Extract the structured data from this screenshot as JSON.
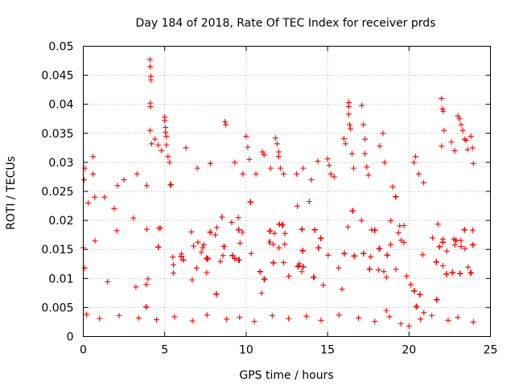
{
  "chart_data": {
    "type": "scatter",
    "title": "Day 184 of 2018, Rate Of TEC Index for receiver prds",
    "xlabel": "GPS time / hours",
    "ylabel": "ROTI / TECUs",
    "xlim": [
      0,
      25
    ],
    "ylim": [
      0,
      0.05
    ],
    "x_ticks": [
      0,
      5,
      10,
      15,
      20,
      25
    ],
    "x_tick_labels": [
      "0",
      "5",
      "10",
      "15",
      "20",
      "25"
    ],
    "y_ticks": [
      0,
      0.005,
      0.01,
      0.015,
      0.02,
      0.025,
      0.03,
      0.035,
      0.04,
      0.045,
      0.05
    ],
    "y_tick_labels": [
      "0",
      "0.005",
      "0.01",
      "0.015",
      "0.02",
      "0.025",
      "0.03",
      "0.035",
      "0.04",
      "0.045",
      "0.05"
    ],
    "grid": true,
    "marker": "plus",
    "color": "#ff0000",
    "series": [
      {
        "name": "ROTI",
        "x_range_hours": [
          0,
          24
        ],
        "typical_range": [
          0.003,
          0.025
        ],
        "points": [
          [
            0.05,
            0.027
          ],
          [
            0.1,
            0.029
          ],
          [
            0.3,
            0.023
          ],
          [
            0.6,
            0.031
          ],
          [
            0.6,
            0.028
          ],
          [
            0.7,
            0.024
          ],
          [
            1.3,
            0.024
          ],
          [
            2.1,
            0.026
          ],
          [
            2.5,
            0.027
          ],
          [
            3.3,
            0.028
          ],
          [
            3.9,
            0.026
          ],
          [
            4.1,
            0.0477
          ],
          [
            4.1,
            0.0465
          ],
          [
            4.15,
            0.0448
          ],
          [
            4.15,
            0.0442
          ],
          [
            4.12,
            0.0402
          ],
          [
            4.12,
            0.0396
          ],
          [
            4.1,
            0.0355
          ],
          [
            4.2,
            0.0332
          ],
          [
            4.4,
            0.034
          ],
          [
            4.6,
            0.033
          ],
          [
            4.8,
            0.032
          ],
          [
            5.0,
            0.0378
          ],
          [
            5.0,
            0.0372
          ],
          [
            5.05,
            0.036
          ],
          [
            5.05,
            0.0352
          ],
          [
            5.1,
            0.0345
          ],
          [
            5.1,
            0.033
          ],
          [
            5.2,
            0.031
          ],
          [
            5.3,
            0.03
          ],
          [
            6.3,
            0.0325
          ],
          [
            7.0,
            0.029
          ],
          [
            7.8,
            0.0298
          ],
          [
            8.7,
            0.037
          ],
          [
            8.75,
            0.0365
          ],
          [
            9.3,
            0.03
          ],
          [
            9.8,
            0.028
          ],
          [
            10.0,
            0.0345
          ],
          [
            10.1,
            0.0326
          ],
          [
            10.2,
            0.0305
          ],
          [
            10.6,
            0.028
          ],
          [
            11.0,
            0.0318
          ],
          [
            11.1,
            0.0313
          ],
          [
            11.5,
            0.029
          ],
          [
            11.8,
            0.0342
          ],
          [
            11.9,
            0.0332
          ],
          [
            12.0,
            0.0318
          ],
          [
            12.0,
            0.031
          ],
          [
            12.1,
            0.029
          ],
          [
            12.3,
            0.028
          ],
          [
            13.1,
            0.028
          ],
          [
            13.5,
            0.029
          ],
          [
            14.0,
            0.027
          ],
          [
            14.4,
            0.0302
          ],
          [
            15.0,
            0.0306
          ],
          [
            15.1,
            0.0295
          ],
          [
            15.2,
            0.028
          ],
          [
            15.4,
            0.0275
          ],
          [
            16.0,
            0.0341
          ],
          [
            16.1,
            0.0332
          ],
          [
            16.3,
            0.0403
          ],
          [
            16.3,
            0.0396
          ],
          [
            16.3,
            0.0383
          ],
          [
            16.35,
            0.0365
          ],
          [
            16.4,
            0.0358
          ],
          [
            16.5,
            0.0315
          ],
          [
            16.6,
            0.029
          ],
          [
            17.1,
            0.0398
          ],
          [
            17.2,
            0.0365
          ],
          [
            17.3,
            0.034
          ],
          [
            17.3,
            0.0315
          ],
          [
            17.4,
            0.0292
          ],
          [
            17.5,
            0.0278
          ],
          [
            18.2,
            0.0328
          ],
          [
            18.4,
            0.035
          ],
          [
            18.5,
            0.03
          ],
          [
            19.0,
            0.0258
          ],
          [
            20.3,
            0.03
          ],
          [
            20.4,
            0.031
          ],
          [
            20.6,
            0.028
          ],
          [
            20.9,
            0.0265
          ],
          [
            22.0,
            0.041
          ],
          [
            22.05,
            0.0392
          ],
          [
            22.1,
            0.0388
          ],
          [
            22.15,
            0.0355
          ],
          [
            22.0,
            0.0328
          ],
          [
            22.6,
            0.0335
          ],
          [
            22.8,
            0.032
          ],
          [
            23.0,
            0.038
          ],
          [
            23.1,
            0.0375
          ],
          [
            23.2,
            0.0365
          ],
          [
            23.3,
            0.0355
          ],
          [
            23.4,
            0.034
          ],
          [
            23.5,
            0.0338
          ],
          [
            23.6,
            0.0322
          ],
          [
            23.8,
            0.0345
          ],
          [
            23.9,
            0.0325
          ],
          [
            23.95,
            0.0298
          ],
          [
            0.2,
            0.0038
          ],
          [
            1.0,
            0.0031
          ],
          [
            2.2,
            0.0036
          ],
          [
            3.4,
            0.0032
          ],
          [
            4.5,
            0.0029
          ],
          [
            5.6,
            0.0034
          ],
          [
            6.7,
            0.0027
          ],
          [
            7.6,
            0.0037
          ],
          [
            8.8,
            0.003
          ],
          [
            9.6,
            0.0033
          ],
          [
            10.5,
            0.0026
          ],
          [
            11.6,
            0.0036
          ],
          [
            12.6,
            0.0031
          ],
          [
            13.7,
            0.0035
          ],
          [
            14.6,
            0.0028
          ],
          [
            15.7,
            0.0037
          ],
          [
            16.9,
            0.0032
          ],
          [
            17.9,
            0.0026
          ],
          [
            18.8,
            0.0034
          ],
          [
            19.5,
            0.0022
          ],
          [
            20.0,
            0.0018
          ],
          [
            20.7,
            0.003
          ],
          [
            21.4,
            0.0036
          ],
          [
            22.4,
            0.0028
          ],
          [
            23.0,
            0.0033
          ],
          [
            23.95,
            0.0025
          ]
        ]
      }
    ]
  }
}
